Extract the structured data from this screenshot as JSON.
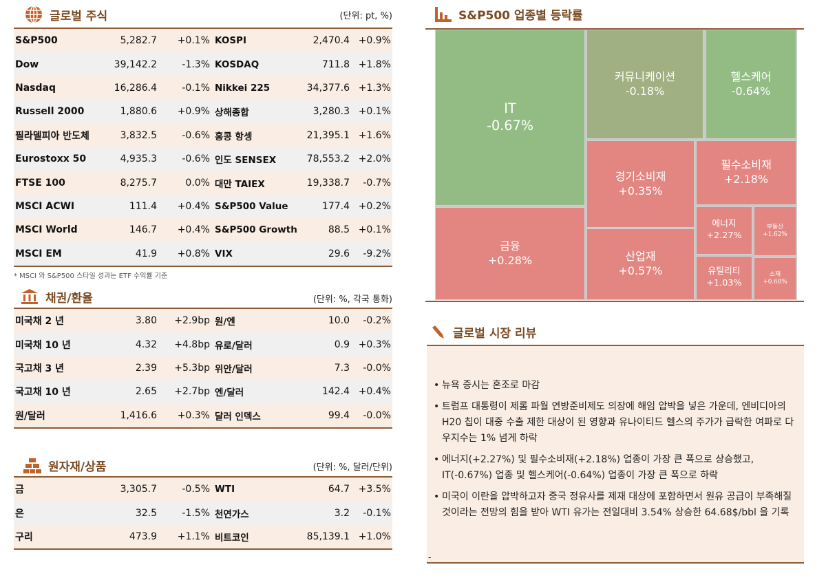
{
  "global_stocks": {
    "title": "글로벌 주식",
    "unit": "(단위: pt, %)",
    "rows": [
      [
        "S&P500",
        "5,282.7",
        "+0.1%",
        "KOSPI",
        "2,470.4",
        "+0.9%"
      ],
      [
        "Dow",
        "39,142.2",
        "-1.3%",
        "KOSDAQ",
        "711.8",
        "+1.8%"
      ],
      [
        "Nasdaq",
        "16,286.4",
        "-0.1%",
        "Nikkei 225",
        "34,377.6",
        "+1.3%"
      ],
      [
        "Russell 2000",
        "1,880.6",
        "+0.9%",
        "상해종합",
        "3,280.3",
        "+0.1%"
      ],
      [
        "필라델피아 반도체",
        "3,832.5",
        "-0.6%",
        "홍콩 항셍",
        "21,395.1",
        "+1.6%"
      ],
      [
        "Eurostoxx 50",
        "4,935.3",
        "-0.6%",
        "인도 SENSEX",
        "78,553.2",
        "+2.0%"
      ],
      [
        "FTSE 100",
        "8,275.7",
        "0.0%",
        "대만 TAIEX",
        "19,338.7",
        "-0.7%"
      ],
      [
        "MSCI ACWI",
        "111.4",
        "+0.4%",
        "S&P500 Value",
        "177.4",
        "+0.2%"
      ],
      [
        "MSCI World",
        "146.7",
        "+0.4%",
        "S&P500 Growth",
        "88.5",
        "+0.1%"
      ],
      [
        "MSCI EM",
        "41.9",
        "+0.8%",
        "VIX",
        "29.6",
        "-9.2%"
      ]
    ],
    "note": "* MSCI 와 S&P500 스타일 성과는 ETF 수익률 기준"
  },
  "bonds_fx": {
    "title": "채권/환율",
    "unit": "(단위: %, 각국 통화)",
    "rows": [
      [
        "미국채 2 년",
        "3.80",
        "+2.9bp",
        "원/엔",
        "10.0",
        "-0.2%"
      ],
      [
        "미국채 10 년",
        "4.32",
        "+4.8bp",
        "유로/달러",
        "0.9",
        "+0.3%"
      ],
      [
        "국고채 3 년",
        "2.39",
        "+5.3bp",
        "위안/달러",
        "7.3",
        "-0.0%"
      ],
      [
        "국고채 10 년",
        "2.65",
        "+2.7bp",
        "엔/달러",
        "142.4",
        "+0.4%"
      ],
      [
        "원/달러",
        "1,416.6",
        "+0.3%",
        "달러 인덱스",
        "99.4",
        "-0.0%"
      ]
    ]
  },
  "commodities": {
    "title": "원자재/상품",
    "unit": "(단위: %, 달러/단위)",
    "rows": [
      [
        "금",
        "3,305.7",
        "-0.5%",
        "WTI",
        "64.7",
        "+3.5%"
      ],
      [
        "은",
        "32.5",
        "-1.5%",
        "천연가스",
        "3.2",
        "-0.1%"
      ],
      [
        "구리",
        "473.9",
        "+1.1%",
        "비트코인",
        "85,139.1",
        "+1.0%"
      ]
    ]
  },
  "sector": {
    "title": "S&P500 업종별 등락률",
    "colors": {
      "up": "#e38580",
      "down": "#93bc84",
      "flat": "#a0b082"
    },
    "cells": [
      {
        "name": "IT",
        "value": "-0.67%"
      },
      {
        "name": "금융",
        "value": "+0.28%"
      },
      {
        "name": "커뮤니케이션",
        "value": "-0.18%"
      },
      {
        "name": "헬스케어",
        "value": "-0.64%"
      },
      {
        "name": "경기소비재",
        "value": "+0.35%"
      },
      {
        "name": "필수소비재",
        "value": "+2.18%"
      },
      {
        "name": "산업재",
        "value": "+0.57%"
      },
      {
        "name": "에너지",
        "value": "+2.27%"
      },
      {
        "name": "부동산",
        "value": "+1.62%"
      },
      {
        "name": "유틸리티",
        "value": "+1.03%"
      },
      {
        "name": "소재",
        "value": "+0.68%"
      }
    ]
  },
  "review": {
    "title": "글로벌 시장 리뷰",
    "items": [
      "뉴욕 증시는 혼조로 마감",
      "트럼프 대통령이 제롬 파월 연방준비제도 의장에 해임 압박을 넣은 가운데, 엔비디아의 H20 칩이 대중 수출 제한 대상이 된 영향과 유나이티드 헬스의 주가가 급락한 여파로 다우지수는 1% 넘게 하락",
      "에너지(+2.27%) 및 필수소비재(+2.18%) 업종이 가장 큰 폭으로 상승했고, IT(-0.67%) 업종 및 헬스케어(-0.64%) 업종이 가장 큰 폭으로 하락",
      "미국이 이란을 압박하고자 중국 정유사를 제재 대상에 포함하면서 원유 공급이 부족해질 것이라는 전망의 힘을 받아 WTI 유가는 전일대비 3.54% 상승한 64.68$/bbl 을 기록"
    ],
    "footer": "-"
  }
}
